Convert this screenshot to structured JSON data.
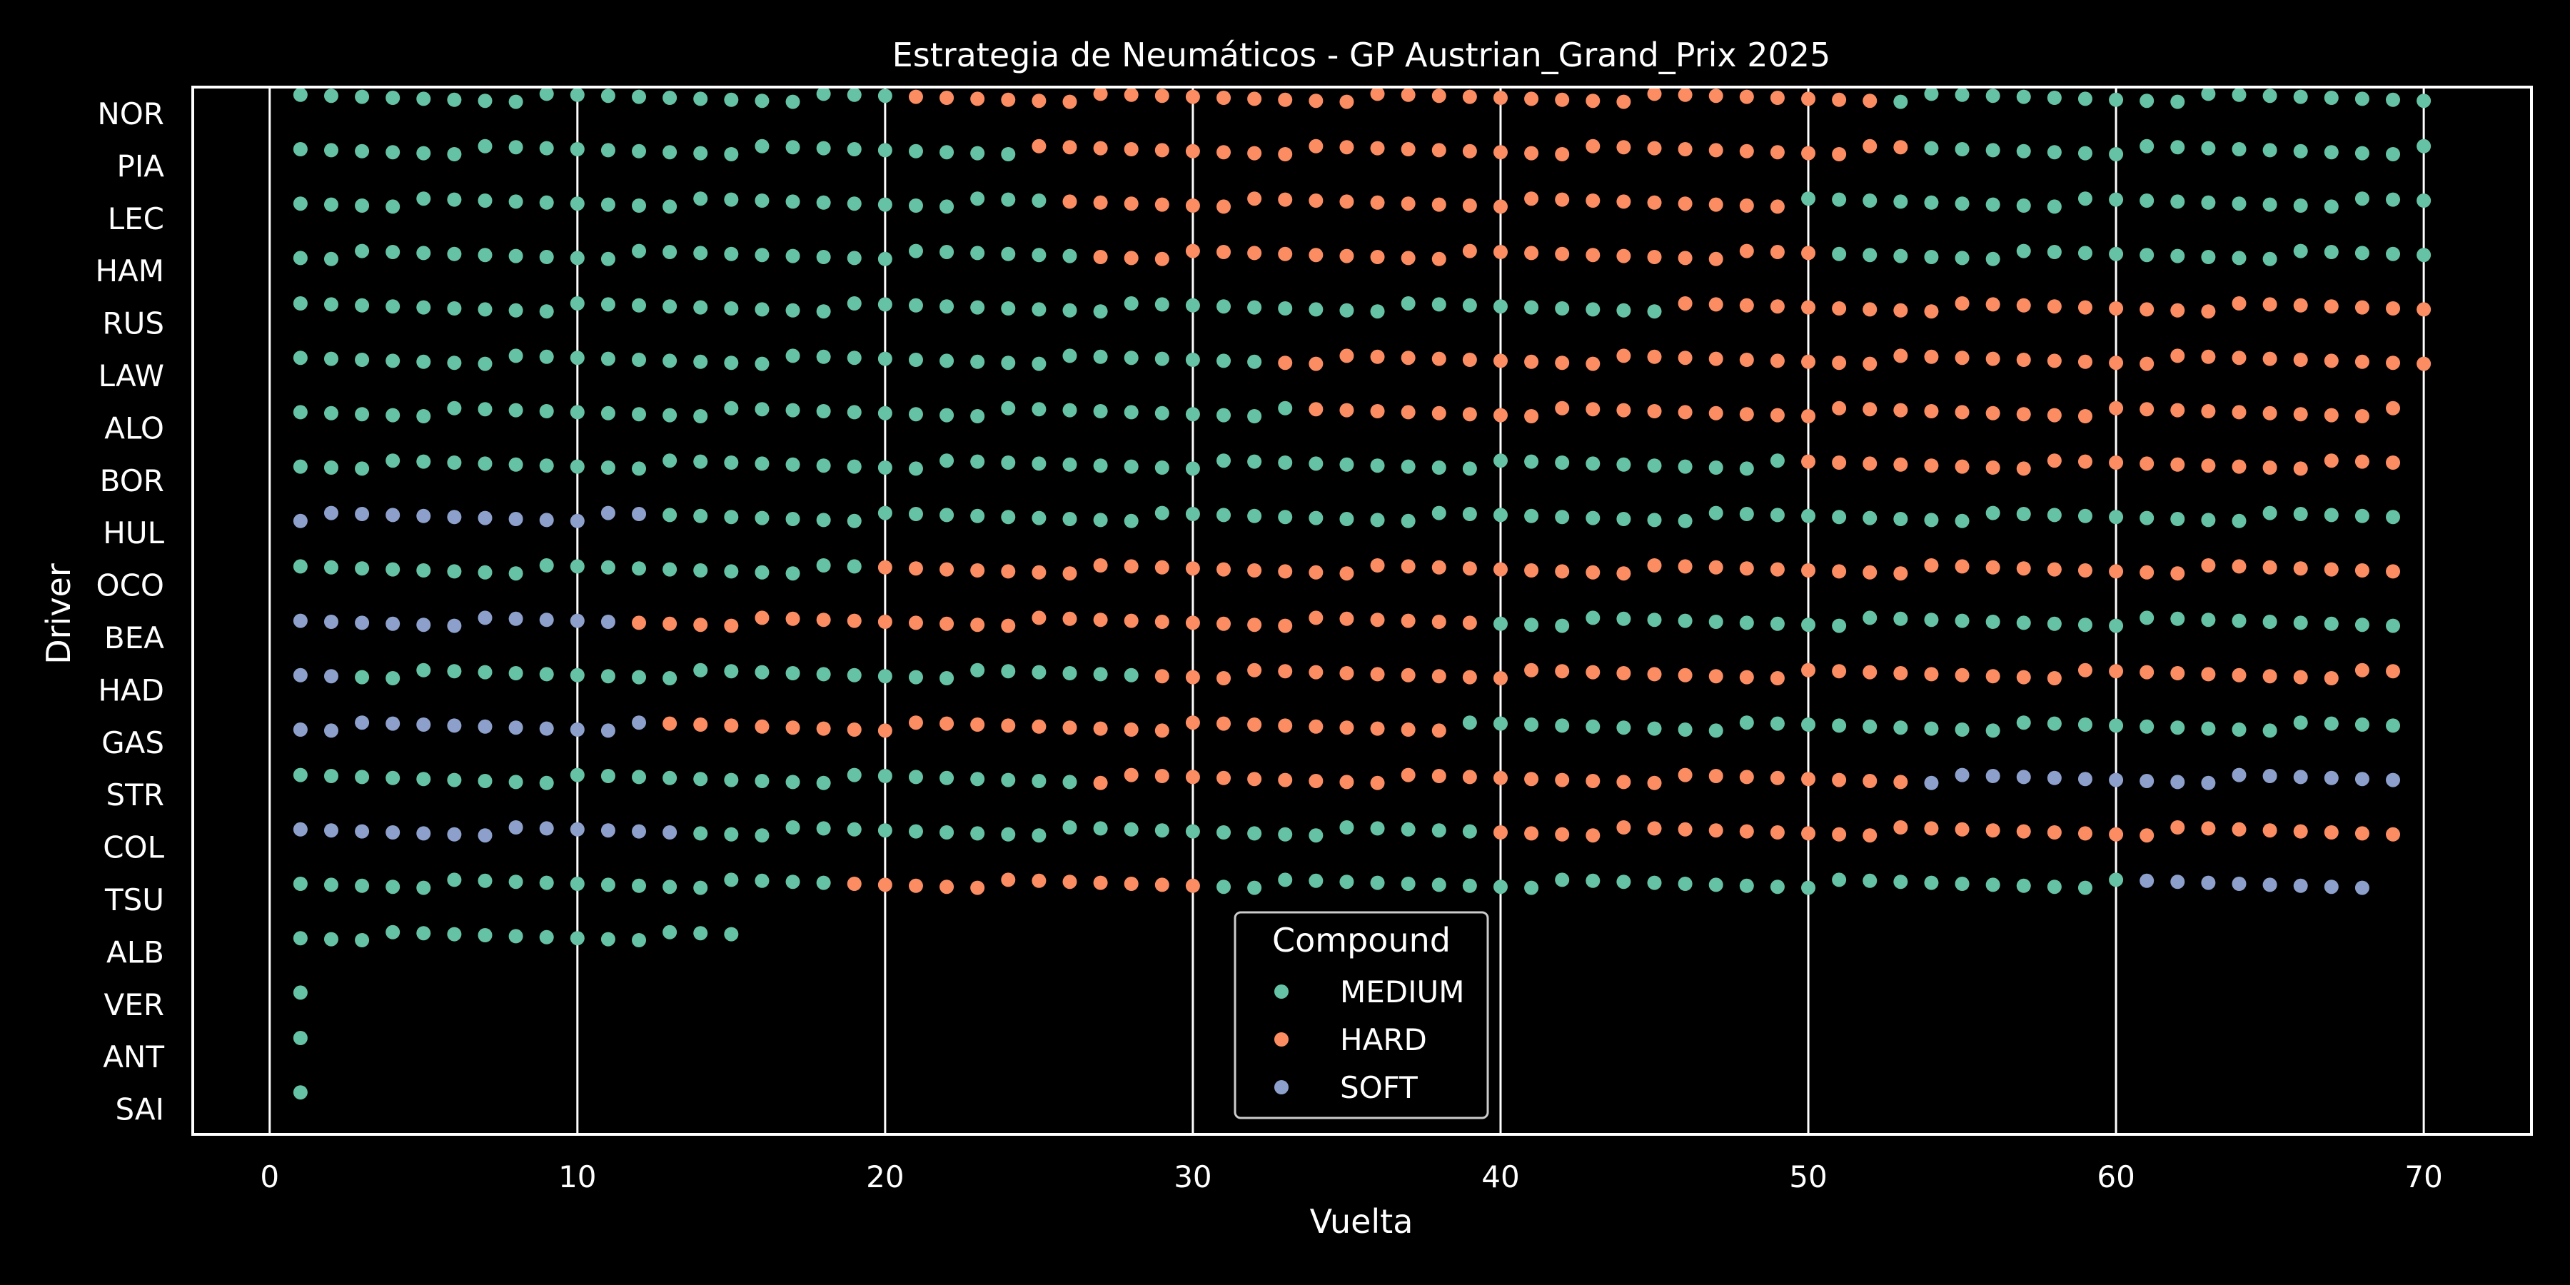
{
  "chart_data": {
    "type": "scatter",
    "title": "Estrategia de Neumáticos - GP Austrian_Grand_Prix 2025",
    "xlabel": "Vuelta",
    "ylabel": "Driver",
    "xlim": [
      -2.5,
      73.5
    ],
    "x_ticks": [
      "0",
      "10",
      "20",
      "30",
      "40",
      "50",
      "60",
      "70"
    ],
    "grid": "vertical",
    "drivers": [
      "NOR",
      "PIA",
      "LEC",
      "HAM",
      "RUS",
      "LAW",
      "ALO",
      "BOR",
      "HUL",
      "OCO",
      "BEA",
      "HAD",
      "GAS",
      "STR",
      "COL",
      "TSU",
      "ALB",
      "VER",
      "ANT",
      "SAI"
    ],
    "compound_colors": {
      "MEDIUM": "#66c2a5",
      "HARD": "#fc8d62",
      "SOFT": "#8da0cb"
    },
    "legend": {
      "title": "Compound",
      "entries": [
        "MEDIUM",
        "HARD",
        "SOFT"
      ],
      "placement": "lower-center"
    },
    "stints": [
      {
        "driver": "NOR",
        "compound": "MEDIUM",
        "from": 1,
        "to": 20
      },
      {
        "driver": "NOR",
        "compound": "HARD",
        "from": 21,
        "to": 52
      },
      {
        "driver": "NOR",
        "compound": "MEDIUM",
        "from": 53,
        "to": 70
      },
      {
        "driver": "PIA",
        "compound": "MEDIUM",
        "from": 1,
        "to": 24
      },
      {
        "driver": "PIA",
        "compound": "HARD",
        "from": 25,
        "to": 53
      },
      {
        "driver": "PIA",
        "compound": "MEDIUM",
        "from": 54,
        "to": 70
      },
      {
        "driver": "LEC",
        "compound": "MEDIUM",
        "from": 1,
        "to": 25
      },
      {
        "driver": "LEC",
        "compound": "HARD",
        "from": 26,
        "to": 49
      },
      {
        "driver": "LEC",
        "compound": "MEDIUM",
        "from": 50,
        "to": 70
      },
      {
        "driver": "HAM",
        "compound": "MEDIUM",
        "from": 1,
        "to": 26
      },
      {
        "driver": "HAM",
        "compound": "HARD",
        "from": 27,
        "to": 50
      },
      {
        "driver": "HAM",
        "compound": "MEDIUM",
        "from": 51,
        "to": 70
      },
      {
        "driver": "RUS",
        "compound": "MEDIUM",
        "from": 1,
        "to": 45
      },
      {
        "driver": "RUS",
        "compound": "HARD",
        "from": 46,
        "to": 70
      },
      {
        "driver": "LAW",
        "compound": "MEDIUM",
        "from": 1,
        "to": 32
      },
      {
        "driver": "LAW",
        "compound": "HARD",
        "from": 33,
        "to": 70
      },
      {
        "driver": "ALO",
        "compound": "MEDIUM",
        "from": 1,
        "to": 33
      },
      {
        "driver": "ALO",
        "compound": "HARD",
        "from": 34,
        "to": 69
      },
      {
        "driver": "BOR",
        "compound": "MEDIUM",
        "from": 1,
        "to": 49
      },
      {
        "driver": "BOR",
        "compound": "HARD",
        "from": 50,
        "to": 69
      },
      {
        "driver": "HUL",
        "compound": "SOFT",
        "from": 1,
        "to": 12
      },
      {
        "driver": "HUL",
        "compound": "MEDIUM",
        "from": 13,
        "to": 69
      },
      {
        "driver": "OCO",
        "compound": "MEDIUM",
        "from": 1,
        "to": 19
      },
      {
        "driver": "OCO",
        "compound": "HARD",
        "from": 20,
        "to": 69
      },
      {
        "driver": "BEA",
        "compound": "SOFT",
        "from": 1,
        "to": 11
      },
      {
        "driver": "BEA",
        "compound": "HARD",
        "from": 12,
        "to": 39
      },
      {
        "driver": "BEA",
        "compound": "MEDIUM",
        "from": 40,
        "to": 69
      },
      {
        "driver": "HAD",
        "compound": "SOFT",
        "from": 1,
        "to": 2
      },
      {
        "driver": "HAD",
        "compound": "MEDIUM",
        "from": 3,
        "to": 28
      },
      {
        "driver": "HAD",
        "compound": "HARD",
        "from": 29,
        "to": 69
      },
      {
        "driver": "GAS",
        "compound": "SOFT",
        "from": 1,
        "to": 12
      },
      {
        "driver": "GAS",
        "compound": "HARD",
        "from": 13,
        "to": 38
      },
      {
        "driver": "GAS",
        "compound": "MEDIUM",
        "from": 39,
        "to": 69
      },
      {
        "driver": "STR",
        "compound": "MEDIUM",
        "from": 1,
        "to": 26
      },
      {
        "driver": "STR",
        "compound": "HARD",
        "from": 27,
        "to": 53
      },
      {
        "driver": "STR",
        "compound": "SOFT",
        "from": 54,
        "to": 69
      },
      {
        "driver": "COL",
        "compound": "SOFT",
        "from": 1,
        "to": 13
      },
      {
        "driver": "COL",
        "compound": "MEDIUM",
        "from": 14,
        "to": 39
      },
      {
        "driver": "COL",
        "compound": "HARD",
        "from": 40,
        "to": 69
      },
      {
        "driver": "TSU",
        "compound": "MEDIUM",
        "from": 1,
        "to": 18
      },
      {
        "driver": "TSU",
        "compound": "HARD",
        "from": 19,
        "to": 30
      },
      {
        "driver": "TSU",
        "compound": "MEDIUM",
        "from": 31,
        "to": 60
      },
      {
        "driver": "TSU",
        "compound": "SOFT",
        "from": 61,
        "to": 68
      },
      {
        "driver": "ALB",
        "compound": "MEDIUM",
        "from": 1,
        "to": 15
      },
      {
        "driver": "VER",
        "compound": "MEDIUM",
        "from": 1,
        "to": 1
      },
      {
        "driver": "ANT",
        "compound": "MEDIUM",
        "from": 1,
        "to": 1
      },
      {
        "driver": "SAI",
        "compound": "MEDIUM",
        "from": 1,
        "to": 1
      }
    ]
  }
}
